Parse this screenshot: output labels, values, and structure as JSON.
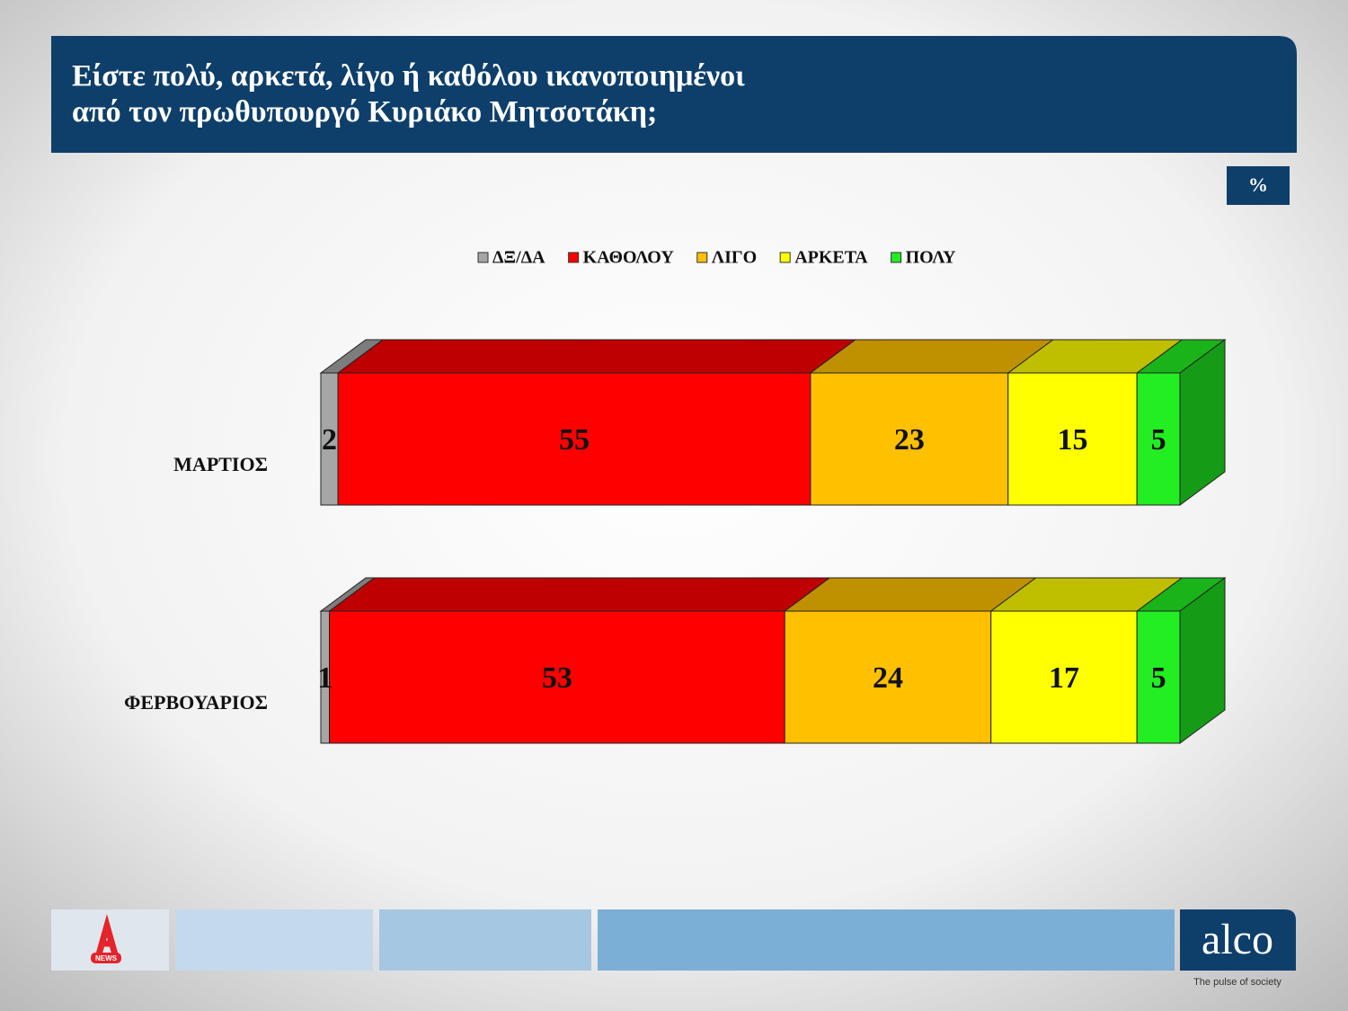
{
  "chart_data": {
    "type": "stacked-bar-3d",
    "title": [
      "Είστε πολύ, αρκετά, λίγο ή καθόλου ικανοποιημένοι",
      "από τον πρωθυπουργό Κυριάκο Μητσοτάκη;"
    ],
    "unit_label": "%",
    "categories": [
      "ΜΑΡΤΙΟΣ",
      "ΦΕΡΒΟΥΑΡΙΟΣ"
    ],
    "xlim": [
      0,
      100
    ],
    "legend": "top",
    "series": [
      {
        "name": "ΔΞ/ΔΑ",
        "color": "#a6a6a6",
        "values": [
          2,
          1
        ]
      },
      {
        "name": "ΚΑΘΟΛΟΥ",
        "color": "#ff0000",
        "values": [
          55,
          53
        ]
      },
      {
        "name": "ΛΙΓΟ",
        "color": "#ffc000",
        "values": [
          23,
          24
        ]
      },
      {
        "name": "ΑΡΚΕΤΑ",
        "color": "#ffff00",
        "values": [
          15,
          17
        ]
      },
      {
        "name": "ΠΟΛΥ",
        "color": "#22ee22",
        "values": [
          5,
          5
        ]
      }
    ]
  },
  "footer": {
    "news_logo": "NEWS",
    "brand": "alco",
    "tagline": "The pulse of society"
  }
}
